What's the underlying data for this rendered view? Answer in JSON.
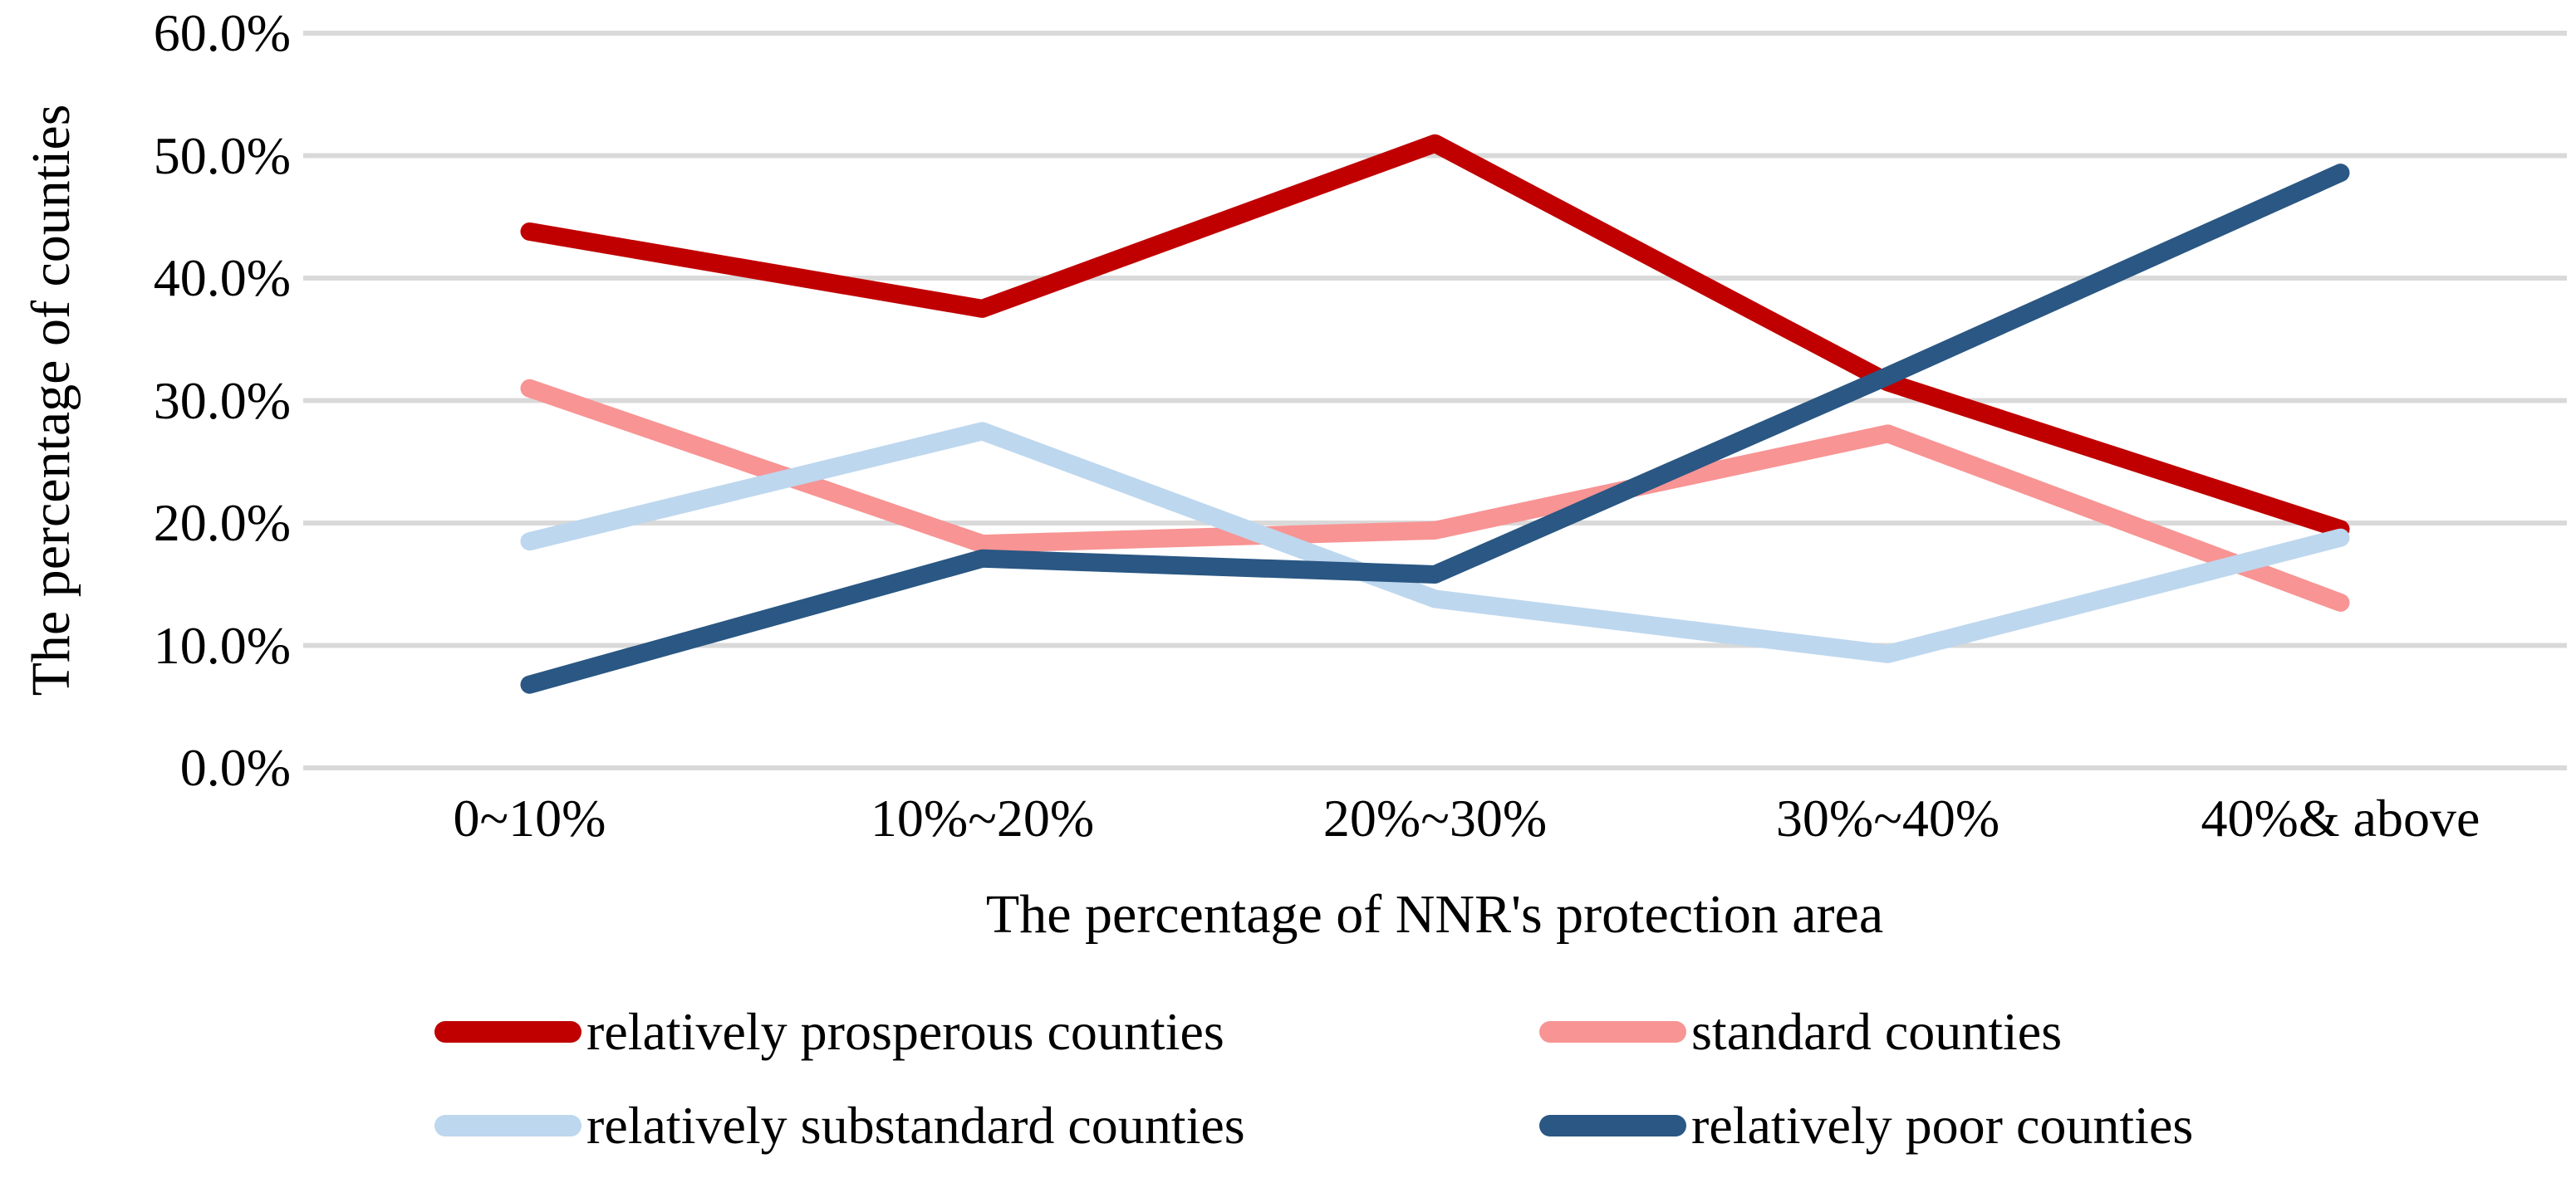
{
  "chart_data": {
    "type": "line",
    "title": "",
    "categories": [
      "0~10%",
      "10%~20%",
      "20%~30%",
      "30%~40%",
      "40%& above"
    ],
    "series": [
      {
        "name": "relatively prosperous counties",
        "color": "#C00000",
        "values": [
          43.8,
          37.5,
          51.0,
          31.5,
          19.5
        ]
      },
      {
        "name": "standard counties",
        "color": "#F89494",
        "values": [
          31.0,
          18.3,
          19.4,
          27.3,
          13.5
        ]
      },
      {
        "name": "relatively substandard counties",
        "color": "#BDD7EE",
        "values": [
          18.5,
          27.5,
          13.8,
          9.3,
          18.8
        ]
      },
      {
        "name": "relatively poor counties",
        "color": "#2A5783",
        "values": [
          6.8,
          17.1,
          15.8,
          32.0,
          48.6
        ]
      }
    ],
    "xlabel": "The percentage of NNR's protection area",
    "ylabel": "The percentage of counties",
    "ylim": [
      0,
      60
    ],
    "ytick_step": 10,
    "yticks": [
      "0.0%",
      "10.0%",
      "20.0%",
      "30.0%",
      "40.0%",
      "50.0%",
      "60.0%"
    ],
    "grid": true,
    "gridline_color": "#D9D9D9",
    "legend_position": "bottom"
  }
}
